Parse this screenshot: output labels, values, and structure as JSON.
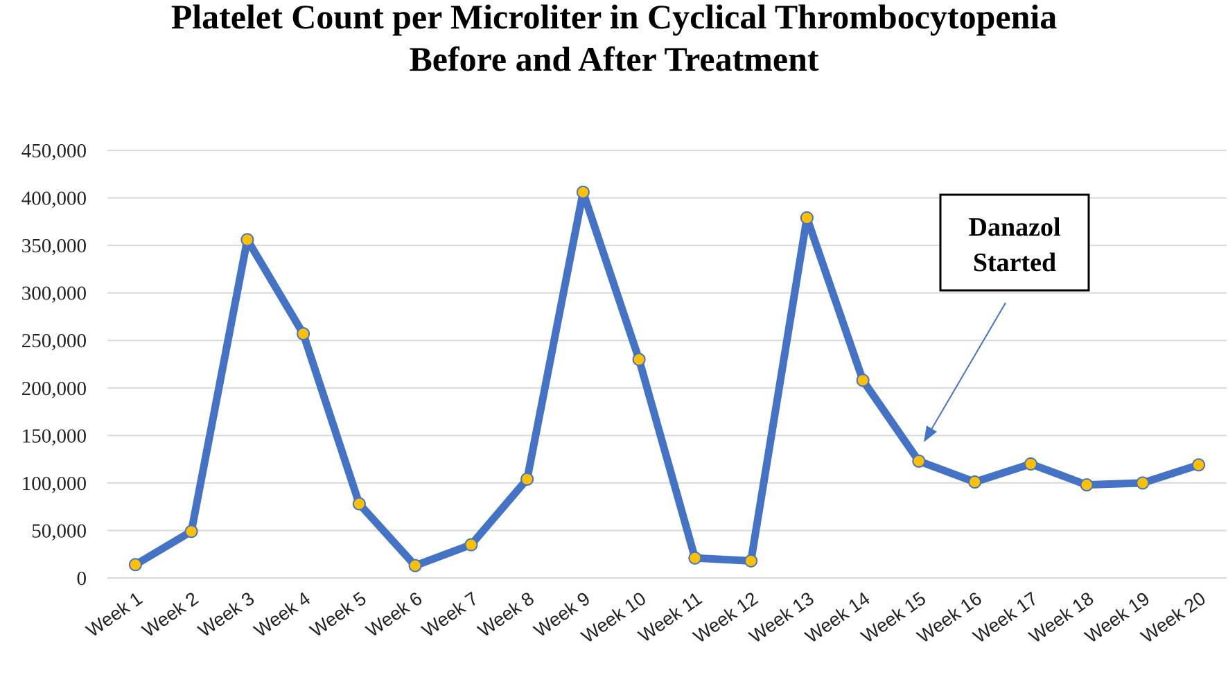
{
  "chart_data": {
    "type": "line",
    "title": "Platelet Count per Microliter in Cyclical Thrombocytopenia",
    "subtitle": "Before and After Treatment",
    "xlabel": "",
    "ylabel": "",
    "ylim": [
      0,
      450000
    ],
    "yticks": [
      0,
      50000,
      100000,
      150000,
      200000,
      250000,
      300000,
      350000,
      400000,
      450000
    ],
    "ytick_labels": [
      "0",
      "50,000",
      "100,000",
      "150,000",
      "200,000",
      "250,000",
      "300,000",
      "350,000",
      "400,000",
      "450,000"
    ],
    "grid": true,
    "categories": [
      "Week 1",
      "Week 2",
      "Week 3",
      "Week 4",
      "Week 5",
      "Week 6",
      "Week 7",
      "Week 8",
      "Week 9",
      "Week 10",
      "Week 11",
      "Week 12",
      "Week 13",
      "Week 14",
      "Week 15",
      "Week 16",
      "Week 17",
      "Week 18",
      "Week 19",
      "Week 20"
    ],
    "series": [
      {
        "values": [
          14000,
          49000,
          356000,
          257000,
          78000,
          13000,
          35000,
          104000,
          406000,
          230000,
          21000,
          18000,
          379000,
          208000,
          123000,
          101000,
          120000,
          98000,
          100000,
          119000
        ]
      }
    ],
    "annotation": {
      "lines": [
        "Danazol",
        "Started"
      ],
      "points_to": "Week 15"
    },
    "colors": {
      "line": "#4472C4",
      "marker_fill": "#FFC000",
      "marker_stroke": "#4472C4",
      "grid": "#D9D9D9",
      "annotation_arrow": "#4472C4"
    }
  }
}
